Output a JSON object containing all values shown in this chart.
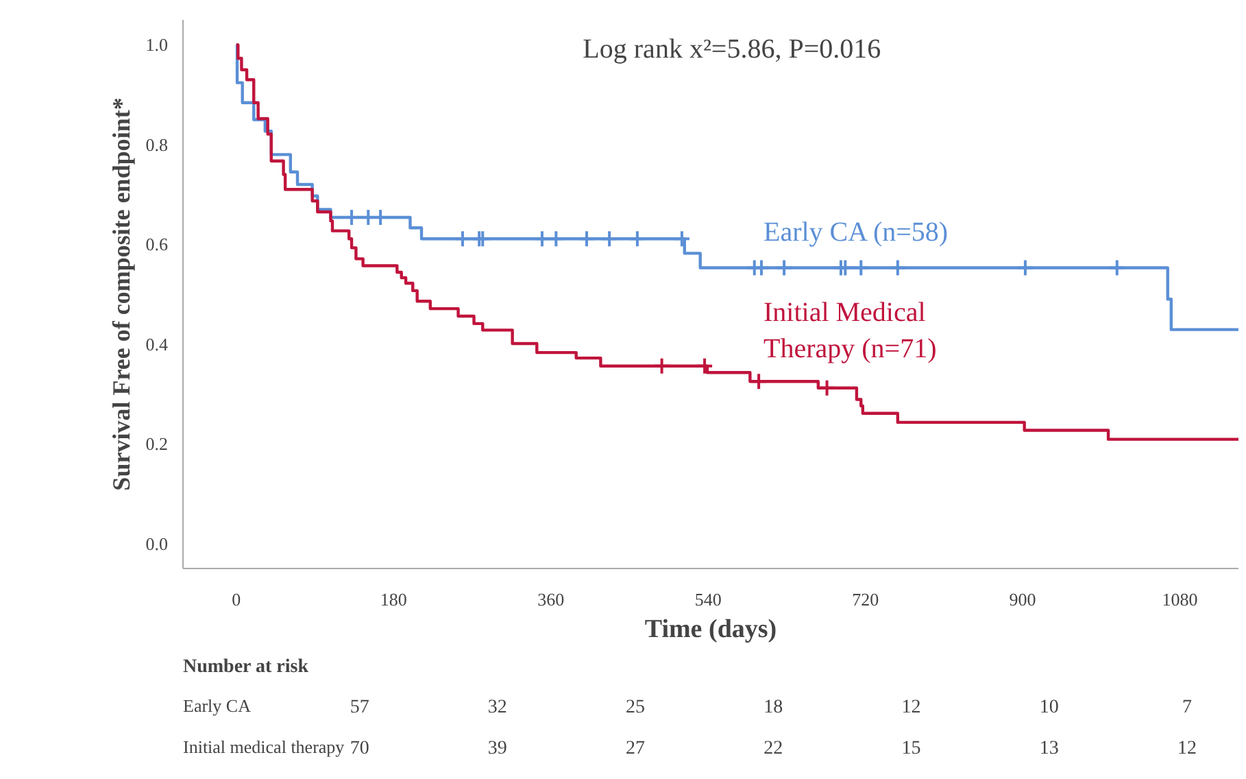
{
  "chart_data": {
    "type": "step",
    "xlabel": "Time (days)",
    "ylabel": "Survival Free of composite endpoint*",
    "xlim": [
      -61,
      1147
    ],
    "ylim": [
      -0.05,
      1.05
    ],
    "xticks": [
      0,
      180,
      360,
      540,
      720,
      900,
      1080
    ],
    "yticks": [
      {
        "value": 0,
        "label": "0.0"
      },
      0.2,
      0.4,
      0.6,
      0.8,
      {
        "value": 1,
        "label": "1.0"
      }
    ],
    "grid": false,
    "line_style": "solid",
    "series": [
      {
        "name": "Early CA (n=58)",
        "color": "#5b8fd6",
        "x": [
          0,
          1,
          7,
          20,
          33,
          40,
          62,
          70,
          87,
          93,
          108,
          199,
          212,
          513,
          531,
          1066,
          1070,
          1147
        ],
        "values": [
          1.0,
          0.924,
          0.884,
          0.85,
          0.827,
          0.78,
          0.745,
          0.72,
          0.697,
          0.67,
          0.654,
          0.633,
          0.611,
          0.582,
          0.553,
          0.49,
          0.429,
          0.429
        ]
      },
      {
        "name": "Initial Medical Therapy (n=71)",
        "color": "#c0143c",
        "x": [
          0,
          2,
          6,
          12,
          20,
          25,
          36,
          40,
          54,
          56,
          87,
          93,
          108,
          110,
          129,
          132,
          137,
          145,
          184,
          189,
          194,
          202,
          207,
          222,
          254,
          272,
          282,
          316,
          344,
          389,
          417,
          539,
          588,
          666,
          710,
          715,
          717,
          757,
          902,
          998,
          1147
        ],
        "values": [
          1.0,
          0.973,
          0.95,
          0.93,
          0.884,
          0.852,
          0.821,
          0.767,
          0.74,
          0.71,
          0.687,
          0.665,
          0.647,
          0.627,
          0.611,
          0.593,
          0.571,
          0.557,
          0.544,
          0.533,
          0.522,
          0.507,
          0.486,
          0.471,
          0.456,
          0.441,
          0.428,
          0.401,
          0.383,
          0.372,
          0.356,
          0.343,
          0.325,
          0.312,
          0.289,
          0.276,
          0.261,
          0.243,
          0.227,
          0.209,
          0.209
        ]
      },
      {
        "color": "#5b8fd6",
        "type": "scatter",
        "marker": "cross",
        "x": [
          132,
          151,
          165,
          259,
          278,
          282,
          350,
          366,
          401,
          427,
          459,
          510,
          593,
          601,
          627,
          692,
          697,
          715,
          757,
          903,
          1008
        ],
        "values": [
          0.654,
          0.654,
          0.654,
          0.611,
          0.611,
          0.611,
          0.611,
          0.611,
          0.611,
          0.611,
          0.611,
          0.611,
          0.553,
          0.553,
          0.553,
          0.553,
          0.553,
          0.553,
          0.553,
          0.553,
          0.553
        ]
      },
      {
        "color": "#c0143c",
        "type": "scatter",
        "marker": "cross",
        "x": [
          487,
          536,
          598,
          676
        ],
        "values": [
          0.356,
          0.356,
          0.325,
          0.312
        ]
      }
    ],
    "annotations": [
      "Log rank x²=5.86, P=0.016",
      "Number at risk",
      "Early CA",
      "57",
      "32",
      "25",
      "18",
      "12",
      "10",
      "7",
      "Initial medical therapy",
      "70",
      "39",
      "27",
      "22",
      "15",
      "13",
      "12"
    ]
  }
}
